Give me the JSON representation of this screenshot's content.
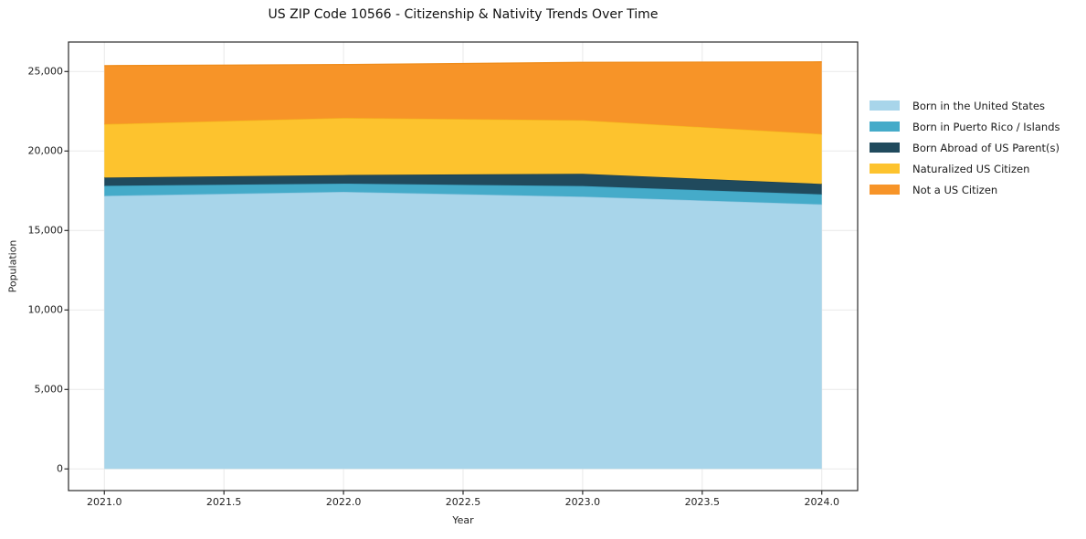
{
  "title": "US ZIP Code 10566 - Citizenship & Nativity Trends Over Time",
  "chart_data": {
    "type": "area",
    "stacked": true,
    "title": "US ZIP Code 10566 - Citizenship & Nativity Trends Over Time",
    "xlabel": "Year",
    "ylabel": "Population",
    "x": [
      2021,
      2022,
      2023,
      2024
    ],
    "series": [
      {
        "name": "Born in the United States",
        "color": "#a8d5ea",
        "edge": "#8fc6e0",
        "values": [
          17180,
          17430,
          17130,
          16645
        ]
      },
      {
        "name": "Born in Puerto Rico / Islands",
        "color": "#45abc9",
        "edge": "#3a9fbe",
        "values": [
          630,
          520,
          665,
          630
        ]
      },
      {
        "name": "Born Abroad of US Parent(s)",
        "color": "#204a5d",
        "edge": "#1a3e50",
        "values": [
          520,
          540,
          770,
          655
        ]
      },
      {
        "name": "Naturalized US Citizen",
        "color": "#fdc32e",
        "edge": "#f5b71c",
        "values": [
          3360,
          3590,
          3370,
          3140
        ]
      },
      {
        "name": "Not a US Citizen",
        "color": "#f79428",
        "edge": "#ef8c1a",
        "values": [
          3680,
          3360,
          3640,
          4540
        ]
      }
    ],
    "xlim": [
      2020.85,
      2024.15
    ],
    "ylim": [
      -1362,
      26857
    ],
    "xticks": [
      2021.0,
      2021.5,
      2022.0,
      2022.5,
      2023.0,
      2023.5,
      2024.0
    ],
    "xtick_labels": [
      "2021.0",
      "2021.5",
      "2022.0",
      "2022.5",
      "2023.0",
      "2023.5",
      "2024.0"
    ],
    "yticks": [
      0,
      5000,
      10000,
      15000,
      20000,
      25000
    ],
    "ytick_labels": [
      "0",
      "5,000",
      "10,000",
      "15,000",
      "20,000",
      "25,000"
    ],
    "grid": true,
    "grid_color": "#e9e9e9",
    "spine_color": "#2a2a2a",
    "background": "#ffffff",
    "legend_position": "right"
  }
}
